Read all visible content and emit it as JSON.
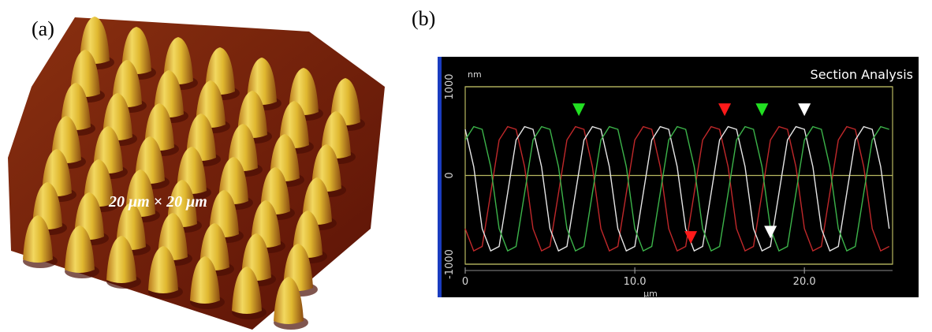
{
  "figure": {
    "label_a": "(a)",
    "label_b": "(b)",
    "scale_text": "20 μm × 20 μm"
  },
  "chart_data": {
    "type": "line",
    "title": "Section Analysis",
    "ylabel": "nm",
    "xlabel": "μm",
    "x": [
      0,
      0.5,
      1,
      1.5,
      2,
      2.5,
      3,
      3.5,
      4,
      4.5,
      5,
      5.5,
      6,
      6.5,
      7,
      7.5,
      8,
      8.5,
      9,
      9.5,
      10,
      10.5,
      11,
      11.5,
      12,
      12.5,
      13,
      13.5,
      14,
      14.5,
      15,
      15.5,
      16,
      16.5,
      17,
      17.5,
      18,
      18.5,
      19,
      19.5,
      20,
      20.5,
      21,
      21.5,
      22,
      22.5,
      23,
      23.5,
      24,
      24.5,
      25
    ],
    "series": [
      {
        "color": "#c0282a",
        "values": [
          -600,
          -850,
          -800,
          -200,
          400,
          550,
          520,
          100,
          -600,
          -850,
          -800,
          -200,
          400,
          550,
          520,
          100,
          -600,
          -850,
          -800,
          -200,
          400,
          550,
          520,
          100,
          -600,
          -850,
          -800,
          -200,
          400,
          550,
          520,
          100,
          -600,
          -850,
          -800,
          -200,
          400,
          550,
          520,
          100,
          -600,
          -850,
          -800,
          -200,
          400,
          550,
          520,
          100,
          -600,
          -850,
          -800
        ]
      },
      {
        "color": "#e6e6e6",
        "values": [
          520,
          100,
          -600,
          -850,
          -800,
          -200,
          400,
          550,
          520,
          100,
          -600,
          -850,
          -800,
          -200,
          400,
          550,
          520,
          100,
          -600,
          -850,
          -800,
          -200,
          400,
          550,
          520,
          100,
          -600,
          -850,
          -800,
          -200,
          400,
          550,
          520,
          100,
          -600,
          -850,
          -800,
          -200,
          400,
          550,
          520,
          100,
          -600,
          -850,
          -800,
          -200,
          400,
          550,
          520,
          100,
          -600
        ]
      },
      {
        "color": "#3cb44a",
        "values": [
          400,
          550,
          520,
          100,
          -600,
          -850,
          -800,
          -200,
          400,
          550,
          520,
          100,
          -600,
          -850,
          -800,
          -200,
          400,
          550,
          520,
          100,
          -600,
          -850,
          -800,
          -200,
          400,
          550,
          520,
          100,
          -600,
          -850,
          -800,
          -200,
          400,
          550,
          520,
          100,
          -600,
          -850,
          -800,
          -200,
          400,
          550,
          520,
          100,
          -600,
          -850,
          -800,
          -200,
          400,
          550,
          520
        ]
      }
    ],
    "markers": [
      {
        "x": 6.7,
        "y": 670,
        "color": "#22e022"
      },
      {
        "x": 15.3,
        "y": 670,
        "color": "#ff1a1a"
      },
      {
        "x": 17.5,
        "y": 670,
        "color": "#22e022"
      },
      {
        "x": 20.0,
        "y": 670,
        "color": "#ffffff"
      },
      {
        "x": 13.3,
        "y": -770,
        "color": "#ff1a1a"
      },
      {
        "x": 18.0,
        "y": -710,
        "color": "#ffffff"
      }
    ],
    "xlim": [
      0,
      25.2
    ],
    "ylim": [
      -1000,
      1000
    ],
    "xticks": [
      0,
      {
        "value": 10,
        "label": "10.0"
      },
      {
        "value": 20,
        "label": "20.0"
      }
    ],
    "yticks": [
      -1000,
      0,
      1000
    ],
    "grid": true,
    "background": "#000000",
    "axis_color": "#b8b860"
  }
}
